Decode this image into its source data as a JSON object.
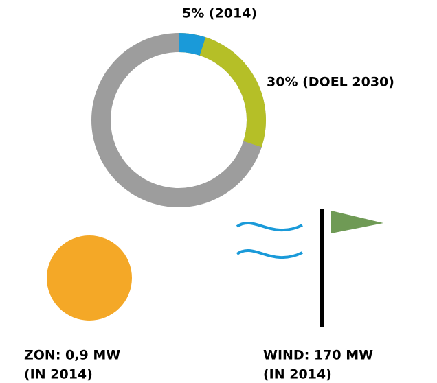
{
  "chart_data": {
    "type": "donut",
    "values": [
      5,
      30
    ],
    "value_labels": [
      "5% (2014)",
      "30% (DOEL 2030)"
    ],
    "colors": [
      "#1a9ad9",
      "#b5bf27"
    ],
    "rest_color": "#9d9d9d",
    "annotations": {
      "zon": [
        "ZON: 0,9 MW",
        "(IN 2014)"
      ],
      "wind": [
        "WIND: 170 MW",
        "(IN 2014)"
      ]
    }
  }
}
